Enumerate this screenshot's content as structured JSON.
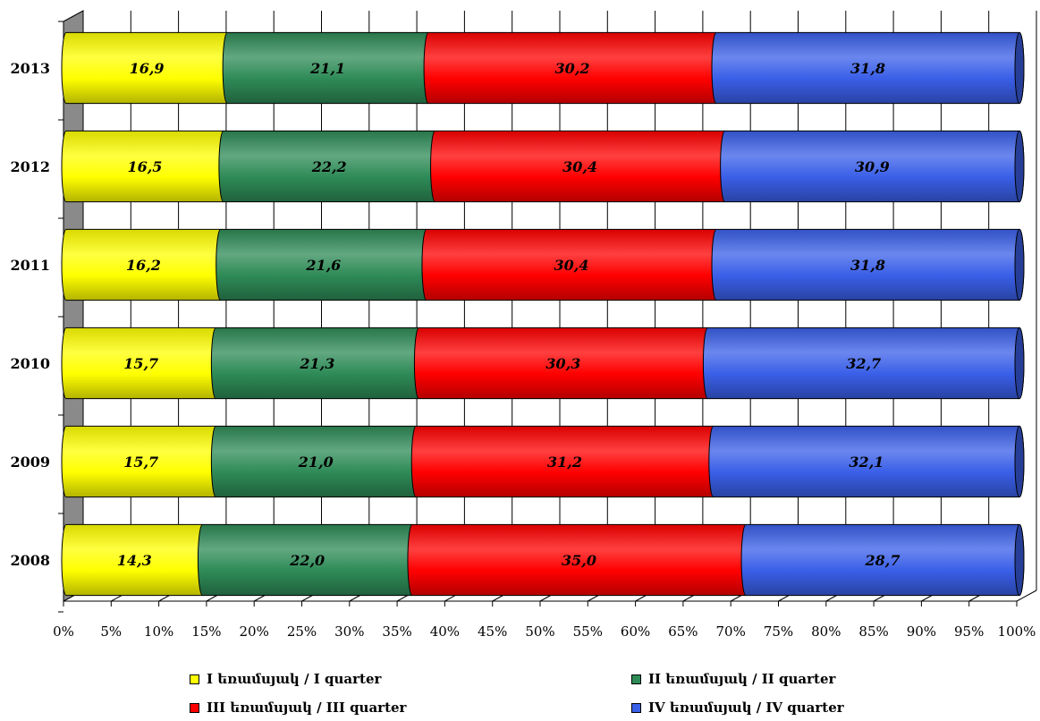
{
  "chart_data": {
    "type": "bar",
    "orientation": "horizontal",
    "stacked": "percent",
    "categories": [
      "2013",
      "2012",
      "2011",
      "2010",
      "2009",
      "2008"
    ],
    "series": [
      {
        "name": "I եռամսյակ / I quarter",
        "color": "#ffff00",
        "values": [
          16.9,
          16.5,
          16.2,
          15.7,
          15.7,
          14.3
        ],
        "labels": [
          "16,9",
          "16,5",
          "16,2",
          "15,7",
          "15,7",
          "14,3"
        ]
      },
      {
        "name": "II եռամսյակ / II quarter",
        "color": "#2e8b57",
        "values": [
          21.1,
          22.2,
          21.6,
          21.3,
          21.0,
          22.0
        ],
        "labels": [
          "21,1",
          "22,2",
          "21,6",
          "21,3",
          "21,0",
          "22,0"
        ]
      },
      {
        "name": "III եռամսյակ / III quarter",
        "color": "#ff0000",
        "values": [
          30.2,
          30.4,
          30.4,
          30.3,
          31.2,
          35.0
        ],
        "labels": [
          "30,2",
          "30,4",
          "30,4",
          "30,3",
          "31,2",
          "35,0"
        ]
      },
      {
        "name": "IV եռամսյակ / IV quarter",
        "color": "#3a5fe8",
        "values": [
          31.8,
          30.9,
          31.8,
          32.7,
          32.1,
          28.7
        ],
        "labels": [
          "31,8",
          "30,9",
          "31,8",
          "32,7",
          "32,1",
          "28,7"
        ]
      }
    ],
    "x_ticks": [
      "0%",
      "5%",
      "10%",
      "15%",
      "20%",
      "25%",
      "30%",
      "35%",
      "40%",
      "45%",
      "50%",
      "55%",
      "60%",
      "65%",
      "70%",
      "75%",
      "80%",
      "85%",
      "90%",
      "95%",
      "100%"
    ],
    "xlim": [
      0,
      100
    ],
    "grid": true,
    "legend_position": "bottom"
  }
}
